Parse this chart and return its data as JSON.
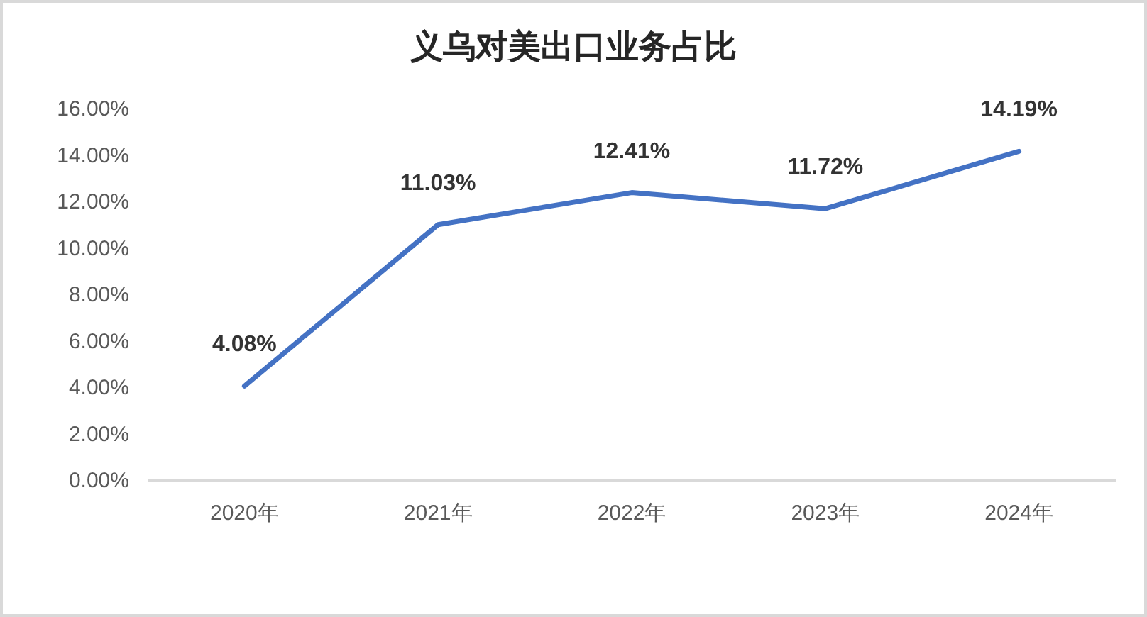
{
  "chart_data": {
    "type": "line",
    "title": "义乌对美出口业务占比",
    "categories": [
      "2020年",
      "2021年",
      "2022年",
      "2023年",
      "2024年"
    ],
    "series": [
      {
        "color": "#4472c4",
        "values": [
          4.08,
          11.03,
          12.41,
          11.72,
          14.19
        ],
        "value_labels": [
          "4.08%",
          "11.03%",
          "12.41%",
          "11.72%",
          "14.19%"
        ]
      }
    ],
    "ylim": [
      0,
      16
    ],
    "yticks": [
      {
        "value": 0,
        "label": "0.00%"
      },
      {
        "value": 2,
        "label": "2.00%"
      },
      {
        "value": 4,
        "label": "4.00%"
      },
      {
        "value": 6,
        "label": "6.00%"
      },
      {
        "value": 8,
        "label": "8.00%"
      },
      {
        "value": 10,
        "label": "10.00%"
      },
      {
        "value": 12,
        "label": "12.00%"
      },
      {
        "value": 14,
        "label": "14.00%"
      },
      {
        "value": 16,
        "label": "16.00%"
      }
    ]
  }
}
